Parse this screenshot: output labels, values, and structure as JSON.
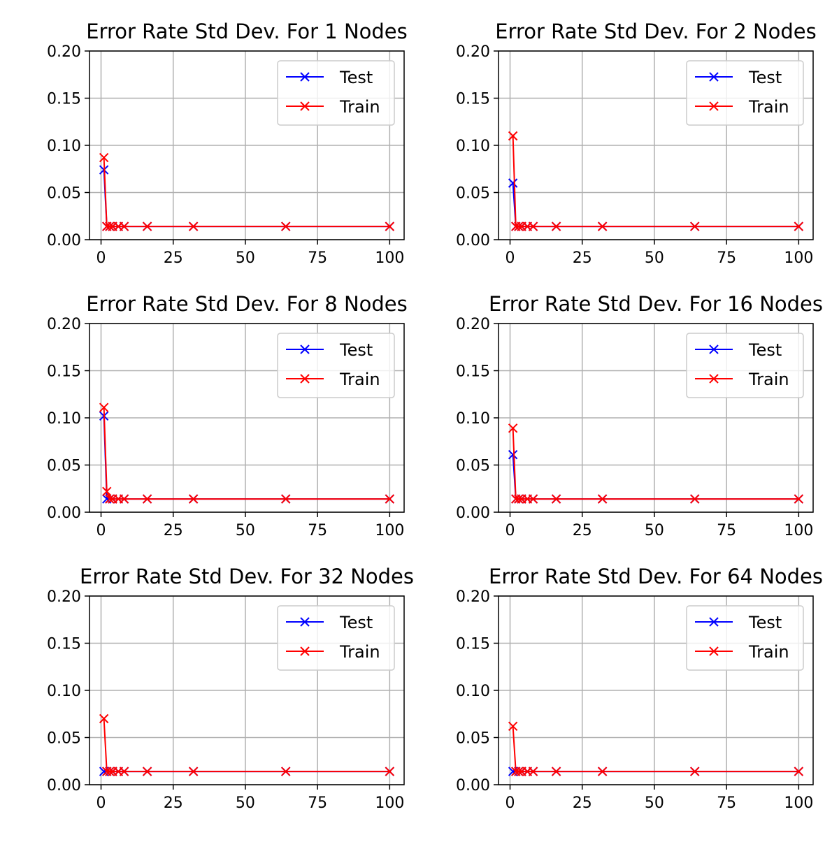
{
  "chart_data": [
    {
      "type": "line",
      "title": "Error Rate Std Dev. For 1 Nodes",
      "x": [
        1,
        2,
        3,
        4,
        6,
        8,
        16,
        32,
        64,
        100
      ],
      "xticks": [
        0,
        25,
        50,
        75,
        100
      ],
      "yticks": [
        0.0,
        0.05,
        0.1,
        0.15,
        0.2
      ],
      "ytick_labels": [
        "0.00",
        "0.05",
        "0.10",
        "0.15",
        "0.20"
      ],
      "xlim": [
        -4,
        105
      ],
      "ylim": [
        0,
        0.2
      ],
      "grid": true,
      "legend": "top-right",
      "series": [
        {
          "name": "Test",
          "color": "#0000ff",
          "marker": "x",
          "values": [
            0.074,
            0.014,
            0.014,
            0.014,
            0.014,
            0.014,
            0.014,
            0.014,
            0.014,
            0.014
          ]
        },
        {
          "name": "Train",
          "color": "#ff0000",
          "marker": "x",
          "values": [
            0.087,
            0.014,
            0.014,
            0.014,
            0.014,
            0.014,
            0.014,
            0.014,
            0.014,
            0.014
          ]
        }
      ]
    },
    {
      "type": "line",
      "title": "Error Rate Std Dev. For 2 Nodes",
      "x": [
        1,
        2,
        3,
        4,
        6,
        8,
        16,
        32,
        64,
        100
      ],
      "xticks": [
        0,
        25,
        50,
        75,
        100
      ],
      "yticks": [
        0.0,
        0.05,
        0.1,
        0.15,
        0.2
      ],
      "ytick_labels": [
        "0.00",
        "0.05",
        "0.10",
        "0.15",
        "0.20"
      ],
      "xlim": [
        -4,
        105
      ],
      "ylim": [
        0,
        0.2
      ],
      "grid": true,
      "legend": "top-right",
      "series": [
        {
          "name": "Test",
          "color": "#0000ff",
          "marker": "x",
          "values": [
            0.06,
            0.014,
            0.014,
            0.014,
            0.014,
            0.014,
            0.014,
            0.014,
            0.014,
            0.014
          ]
        },
        {
          "name": "Train",
          "color": "#ff0000",
          "marker": "x",
          "values": [
            0.11,
            0.014,
            0.014,
            0.014,
            0.014,
            0.014,
            0.014,
            0.014,
            0.014,
            0.014
          ]
        }
      ]
    },
    {
      "type": "line",
      "title": "Error Rate Std Dev. For 8 Nodes",
      "x": [
        1,
        2,
        3,
        4,
        6,
        8,
        16,
        32,
        64,
        100
      ],
      "xticks": [
        0,
        25,
        50,
        75,
        100
      ],
      "yticks": [
        0.0,
        0.05,
        0.1,
        0.15,
        0.2
      ],
      "ytick_labels": [
        "0.00",
        "0.05",
        "0.10",
        "0.15",
        "0.20"
      ],
      "xlim": [
        -4,
        105
      ],
      "ylim": [
        0,
        0.2
      ],
      "grid": true,
      "legend": "top-right",
      "series": [
        {
          "name": "Test",
          "color": "#0000ff",
          "marker": "x",
          "values": [
            0.102,
            0.014,
            0.014,
            0.014,
            0.014,
            0.014,
            0.014,
            0.014,
            0.014,
            0.014
          ]
        },
        {
          "name": "Train",
          "color": "#ff0000",
          "marker": "x",
          "values": [
            0.111,
            0.022,
            0.014,
            0.014,
            0.014,
            0.014,
            0.014,
            0.014,
            0.014,
            0.014
          ]
        }
      ]
    },
    {
      "type": "line",
      "title": "Error Rate Std Dev. For 16 Nodes",
      "x": [
        1,
        2,
        3,
        4,
        6,
        8,
        16,
        32,
        64,
        100
      ],
      "xticks": [
        0,
        25,
        50,
        75,
        100
      ],
      "yticks": [
        0.0,
        0.05,
        0.1,
        0.15,
        0.2
      ],
      "ytick_labels": [
        "0.00",
        "0.05",
        "0.10",
        "0.15",
        "0.20"
      ],
      "xlim": [
        -4,
        105
      ],
      "ylim": [
        0,
        0.2
      ],
      "grid": true,
      "legend": "top-right",
      "series": [
        {
          "name": "Test",
          "color": "#0000ff",
          "marker": "x",
          "values": [
            0.061,
            0.014,
            0.014,
            0.014,
            0.014,
            0.014,
            0.014,
            0.014,
            0.014,
            0.014
          ]
        },
        {
          "name": "Train",
          "color": "#ff0000",
          "marker": "x",
          "values": [
            0.089,
            0.014,
            0.014,
            0.014,
            0.014,
            0.014,
            0.014,
            0.014,
            0.014,
            0.014
          ]
        }
      ]
    },
    {
      "type": "line",
      "title": "Error Rate Std Dev. For 32 Nodes",
      "x": [
        1,
        2,
        3,
        4,
        6,
        8,
        16,
        32,
        64,
        100
      ],
      "xticks": [
        0,
        25,
        50,
        75,
        100
      ],
      "yticks": [
        0.0,
        0.05,
        0.1,
        0.15,
        0.2
      ],
      "ytick_labels": [
        "0.00",
        "0.05",
        "0.10",
        "0.15",
        "0.20"
      ],
      "xlim": [
        -4,
        105
      ],
      "ylim": [
        0,
        0.2
      ],
      "grid": true,
      "legend": "top-right",
      "series": [
        {
          "name": "Test",
          "color": "#0000ff",
          "marker": "x",
          "values": [
            0.014,
            0.014,
            0.014,
            0.014,
            0.014,
            0.014,
            0.014,
            0.014,
            0.014,
            0.014
          ]
        },
        {
          "name": "Train",
          "color": "#ff0000",
          "marker": "x",
          "values": [
            0.07,
            0.014,
            0.014,
            0.014,
            0.014,
            0.014,
            0.014,
            0.014,
            0.014,
            0.014
          ]
        }
      ]
    },
    {
      "type": "line",
      "title": "Error Rate Std Dev. For 64 Nodes",
      "x": [
        1,
        2,
        3,
        4,
        6,
        8,
        16,
        32,
        64,
        100
      ],
      "xticks": [
        0,
        25,
        50,
        75,
        100
      ],
      "yticks": [
        0.0,
        0.05,
        0.1,
        0.15,
        0.2
      ],
      "ytick_labels": [
        "0.00",
        "0.05",
        "0.10",
        "0.15",
        "0.20"
      ],
      "xlim": [
        -4,
        105
      ],
      "ylim": [
        0,
        0.2
      ],
      "grid": true,
      "legend": "top-right",
      "series": [
        {
          "name": "Test",
          "color": "#0000ff",
          "marker": "x",
          "values": [
            0.014,
            0.014,
            0.014,
            0.014,
            0.014,
            0.014,
            0.014,
            0.014,
            0.014,
            0.014
          ]
        },
        {
          "name": "Train",
          "color": "#ff0000",
          "marker": "x",
          "values": [
            0.062,
            0.014,
            0.014,
            0.014,
            0.014,
            0.014,
            0.014,
            0.014,
            0.014,
            0.014
          ]
        }
      ]
    }
  ]
}
